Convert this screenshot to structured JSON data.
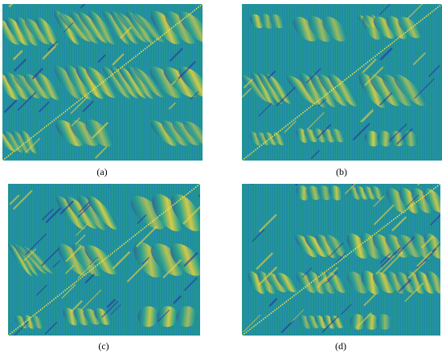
{
  "figure": {
    "panels": [
      {
        "id": "a",
        "label": "(a)",
        "pattern": "dense"
      },
      {
        "id": "b",
        "label": "(b)",
        "pattern": "blocks"
      },
      {
        "id": "c",
        "label": "(c)",
        "pattern": "stripes"
      },
      {
        "id": "d",
        "label": "(d)",
        "pattern": "blocks-stripes"
      }
    ],
    "colormap": {
      "background": "#1f8aa6",
      "grid": "#2aa37f",
      "low": "#2b2f9e",
      "mid": "#2ea88a",
      "high": "#f2d23a",
      "diagonal": "#f6e24a"
    }
  }
}
